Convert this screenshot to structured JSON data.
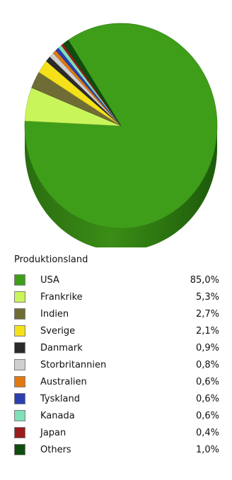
{
  "legend": {
    "title": "Produktionsland"
  },
  "chart_data": {
    "type": "pie",
    "title": "",
    "legend_position": "bottom",
    "categories": [
      "USA",
      "Frankrike",
      "Indien",
      "Sverige",
      "Danmark",
      "Storbritannien",
      "Australien",
      "Tyskland",
      "Kanada",
      "Japan",
      "Others"
    ],
    "values": [
      85.0,
      5.3,
      2.7,
      2.1,
      0.9,
      0.8,
      0.6,
      0.6,
      0.6,
      0.4,
      1.0
    ],
    "labels": [
      "85,0%",
      "5,3%",
      "2,7%",
      "2,1%",
      "0,9%",
      "0,8%",
      "0,6%",
      "0,6%",
      "0,6%",
      "0,4%",
      "1,0%"
    ],
    "colors": [
      "#3e9e19",
      "#c8f55a",
      "#6f6d35",
      "#f5e11a",
      "#2a2a2a",
      "#cfcfcf",
      "#e07a10",
      "#2a3fae",
      "#80e0b8",
      "#9a1c1c",
      "#0f4d0f"
    ]
  }
}
